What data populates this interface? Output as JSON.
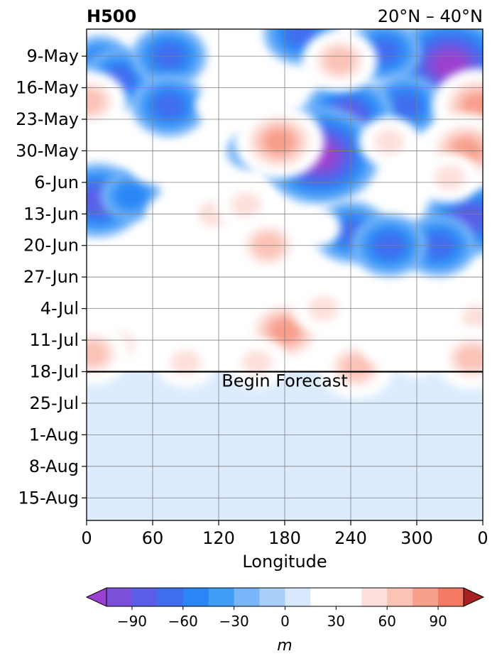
{
  "chart_data": {
    "type": "heatmap",
    "title_left": "H500",
    "title_right": "20°N – 40°N",
    "xlabel": "Longitude",
    "x_ticks": [
      "0",
      "60",
      "120",
      "180",
      "240",
      "300",
      "0"
    ],
    "x_range": [
      0,
      360
    ],
    "y_ticks": [
      "9-May",
      "16-May",
      "23-May",
      "30-May",
      "6-Jun",
      "13-Jun",
      "20-Jun",
      "27-Jun",
      "4-Jul",
      "11-Jul",
      "18-Jul",
      "25-Jul",
      "1-Aug",
      "8-Aug",
      "15-Aug"
    ],
    "y_range": [
      "2019-05-03",
      "2019-08-20"
    ],
    "grid": true,
    "annotation": {
      "text": "Begin Forecast",
      "date": "2019-07-18",
      "x": 180
    },
    "colorbar": {
      "label": "m",
      "ticks": [
        "−90",
        "−60",
        "−30",
        "0",
        "30",
        "60",
        "90"
      ],
      "levels": [
        -105,
        -90,
        -75,
        -60,
        -45,
        -30,
        -15,
        0,
        15,
        30,
        45,
        60,
        75,
        90,
        105
      ],
      "extend": "both",
      "colors": [
        "#9b3fcf",
        "#7b4fd8",
        "#5a5ee6",
        "#3f6eef",
        "#2a86f5",
        "#3f9df7",
        "#78b6f9",
        "#a9d0fb",
        "#d8e9fd",
        "#ffffff",
        "#ffffff",
        "#fde0dc",
        "#fbc2b6",
        "#f89f8c",
        "#f57a63",
        "#ef5a3f",
        "#dd4733",
        "#cd3a2d",
        "#c43028",
        "#a82020"
      ]
    },
    "features": [
      {
        "sign": "neg",
        "lon": 330,
        "date": "2019-05-11",
        "value": -105
      },
      {
        "sign": "neg",
        "lon": 270,
        "date": "2019-05-08",
        "value": -60
      },
      {
        "sign": "neg",
        "lon": 290,
        "date": "2019-05-20",
        "value": -60
      },
      {
        "sign": "neg",
        "lon": 12,
        "date": "2019-05-10",
        "value": -45
      },
      {
        "sign": "neg",
        "lon": 30,
        "date": "2019-05-14",
        "value": -60
      },
      {
        "sign": "neg",
        "lon": 75,
        "date": "2019-05-09",
        "value": -60
      },
      {
        "sign": "neg",
        "lon": 75,
        "date": "2019-05-20",
        "value": -60
      },
      {
        "sign": "neg",
        "lon": 195,
        "date": "2019-05-04",
        "value": -60
      },
      {
        "sign": "neg",
        "lon": 238,
        "date": "2019-05-22",
        "value": -75
      },
      {
        "sign": "neg",
        "lon": 212,
        "date": "2019-05-31",
        "value": -105
      },
      {
        "sign": "neg",
        "lon": 148,
        "date": "2019-05-30",
        "value": -30
      },
      {
        "sign": "neg",
        "lon": 10,
        "date": "2019-06-10",
        "value": -75
      },
      {
        "sign": "neg",
        "lon": 348,
        "date": "2019-06-14",
        "value": -75
      },
      {
        "sign": "neg",
        "lon": 320,
        "date": "2019-06-20",
        "value": -60
      },
      {
        "sign": "neg",
        "lon": 240,
        "date": "2019-06-17",
        "value": -60
      },
      {
        "sign": "neg",
        "lon": 275,
        "date": "2019-06-20",
        "value": -60
      },
      {
        "sign": "neg",
        "lon": 40,
        "date": "2019-06-09",
        "value": -45
      },
      {
        "sign": "pos",
        "lon": 2,
        "date": "2019-05-19",
        "value": 60
      },
      {
        "sign": "pos",
        "lon": 355,
        "date": "2019-05-20",
        "value": 75
      },
      {
        "sign": "pos",
        "lon": 345,
        "date": "2019-05-30",
        "value": 75
      },
      {
        "sign": "pos",
        "lon": 330,
        "date": "2019-06-05",
        "value": 45
      },
      {
        "sign": "pos",
        "lon": 175,
        "date": "2019-05-28",
        "value": 75
      },
      {
        "sign": "pos",
        "lon": 230,
        "date": "2019-05-10",
        "value": 60
      },
      {
        "sign": "pos",
        "lon": 275,
        "date": "2019-05-28",
        "value": 45
      },
      {
        "sign": "pos",
        "lon": 120,
        "date": "2019-05-20",
        "value": 30
      },
      {
        "sign": "pos",
        "lon": 115,
        "date": "2019-06-13",
        "value": 45
      },
      {
        "sign": "pos",
        "lon": 145,
        "date": "2019-06-11",
        "value": 45
      },
      {
        "sign": "pos",
        "lon": 165,
        "date": "2019-06-20",
        "value": 60
      },
      {
        "sign": "pos",
        "lon": 75,
        "date": "2019-06-13",
        "value": 30
      },
      {
        "sign": "pos",
        "lon": 210,
        "date": "2019-06-16",
        "value": 30
      },
      {
        "sign": "pos",
        "lon": 60,
        "date": "2019-06-02",
        "value": 30
      },
      {
        "sign": "pos",
        "lon": 180,
        "date": "2019-07-09",
        "value": 75
      },
      {
        "sign": "pos",
        "lon": 155,
        "date": "2019-07-16",
        "value": 45
      },
      {
        "sign": "pos",
        "lon": 30,
        "date": "2019-07-12",
        "value": 45
      },
      {
        "sign": "pos",
        "lon": 5,
        "date": "2019-07-14",
        "value": 60
      },
      {
        "sign": "pos",
        "lon": 90,
        "date": "2019-07-16",
        "value": 45
      },
      {
        "sign": "pos",
        "lon": 215,
        "date": "2019-07-04",
        "value": 45
      },
      {
        "sign": "pos",
        "lon": 245,
        "date": "2019-07-17",
        "value": 60
      },
      {
        "sign": "pos",
        "lon": 355,
        "date": "2019-07-06",
        "value": 45
      },
      {
        "sign": "pos",
        "lon": 350,
        "date": "2019-07-15",
        "value": 60
      },
      {
        "sign": "pos",
        "lon": 270,
        "date": "2019-07-12",
        "value": 30
      },
      {
        "sign": "pos",
        "lon": 125,
        "date": "2019-07-03",
        "value": 30
      },
      {
        "sign": "pos",
        "lon": 300,
        "date": "2019-07-15",
        "value": 30
      }
    ],
    "forecast_shading": {
      "value": 10,
      "from": "2019-07-18",
      "to": "2019-08-20"
    }
  }
}
